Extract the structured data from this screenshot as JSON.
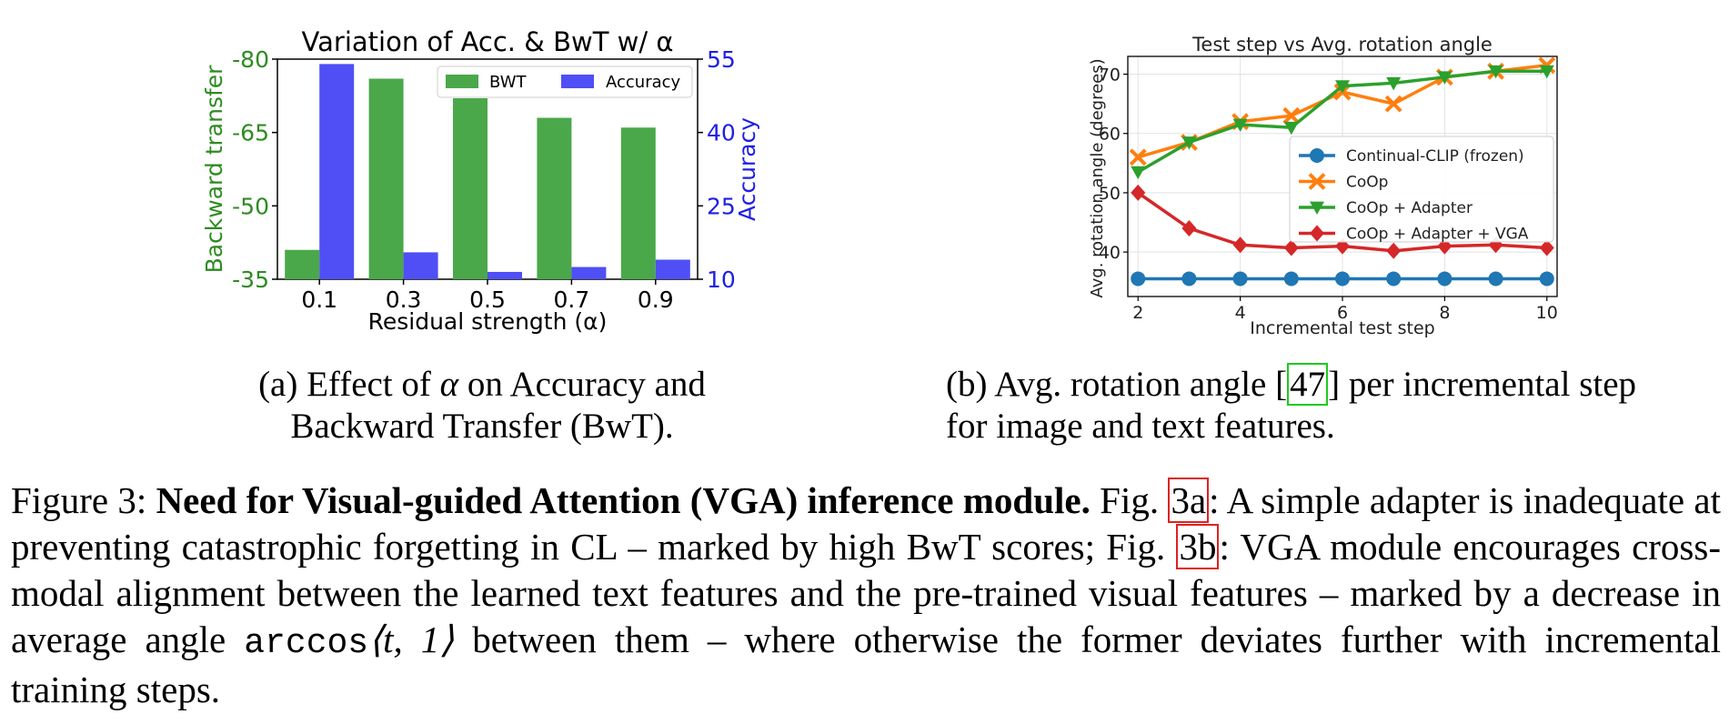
{
  "chart_data": [
    {
      "type": "bar",
      "title": "Variation of Acc. & BwT w/ α",
      "xlabel": "Residual strength (α)",
      "categories": [
        "0.1",
        "0.3",
        "0.5",
        "0.7",
        "0.9"
      ],
      "y_left": {
        "label": "Backward transfer",
        "range": [
          -35,
          -80
        ],
        "ticks": [
          "-80",
          "-65",
          "-50",
          "-35"
        ],
        "color": "#2e8b22"
      },
      "y_right": {
        "label": "Accuracy",
        "range": [
          10,
          55
        ],
        "ticks": [
          "55",
          "40",
          "25",
          "10"
        ],
        "color": "#1f1fe6"
      },
      "series": [
        {
          "name": "BWT",
          "axis": "left",
          "color": "#4aa84a",
          "values": [
            -41,
            -76,
            -72,
            -68,
            -66
          ]
        },
        {
          "name": "Accuracy",
          "axis": "right",
          "color": "#4f4ff5",
          "values": [
            54,
            15.5,
            11.5,
            12.5,
            14
          ]
        }
      ],
      "legend_position": "top-right"
    },
    {
      "type": "line",
      "title": "Test step vs Avg. rotation angle",
      "xlabel": "Incremental test step",
      "ylabel": "Avg. rotation angle (degrees)",
      "x": [
        2,
        3,
        4,
        5,
        6,
        7,
        8,
        9,
        10
      ],
      "xlim": [
        1.8,
        10.2
      ],
      "ylim": [
        32.5,
        73
      ],
      "x_ticks": [
        "2",
        "4",
        "6",
        "8",
        "10"
      ],
      "y_ticks": [
        "40",
        "50",
        "60",
        "70"
      ],
      "grid": true,
      "legend_position": "center-right",
      "series": [
        {
          "name": "Continual-CLIP (frozen)",
          "color": "#1f77b4",
          "marker": "circle",
          "values": [
            35.5,
            35.5,
            35.5,
            35.5,
            35.5,
            35.5,
            35.5,
            35.5,
            35.5
          ]
        },
        {
          "name": "CoOp",
          "color": "#ff7f0e",
          "marker": "x",
          "values": [
            56,
            58.5,
            62,
            63,
            67,
            65,
            69.5,
            70.5,
            71.5
          ]
        },
        {
          "name": "CoOp + Adapter",
          "color": "#2ca02c",
          "marker": "triangle-down",
          "values": [
            53.5,
            58.5,
            61.5,
            61,
            68,
            68.5,
            69.5,
            70.5,
            70.5
          ]
        },
        {
          "name": "CoOp + Adapter + VGA",
          "color": "#d62728",
          "marker": "diamond",
          "values": [
            50,
            44,
            41.2,
            40.7,
            41,
            40.2,
            41,
            41.2,
            40.7
          ]
        }
      ]
    }
  ],
  "subcaptions": {
    "a": {
      "line1": "(a) Effect of ",
      "alpha": "α",
      "line1_end": " on Accuracy and",
      "line2": "Backward Transfer (BwT)."
    },
    "b": {
      "line1_start": "(b) Avg. rotation angle [",
      "ref": "47",
      "line1_end": "] per incremental step",
      "line2": "for image and text features."
    }
  },
  "caption": {
    "lead": "Figure 3: ",
    "bold": "Need for Visual-guided Attention (VGA) inference module.",
    "p1": " Fig. ",
    "ref1": "3a",
    "p2": ": A simple adapter is inadequate at preventing catastrophic forgetting in CL – marked by high BwT scores; Fig. ",
    "ref2": "3b",
    "p3": ": VGA module encourages cross-modal alignment between the learned text features and the pre-trained visual features – marked by a decrease in average angle ",
    "mono": "arccos",
    "math": "⟨t, 1⟩",
    "p4": " between them – where otherwise the former deviates further with incremental training steps."
  }
}
